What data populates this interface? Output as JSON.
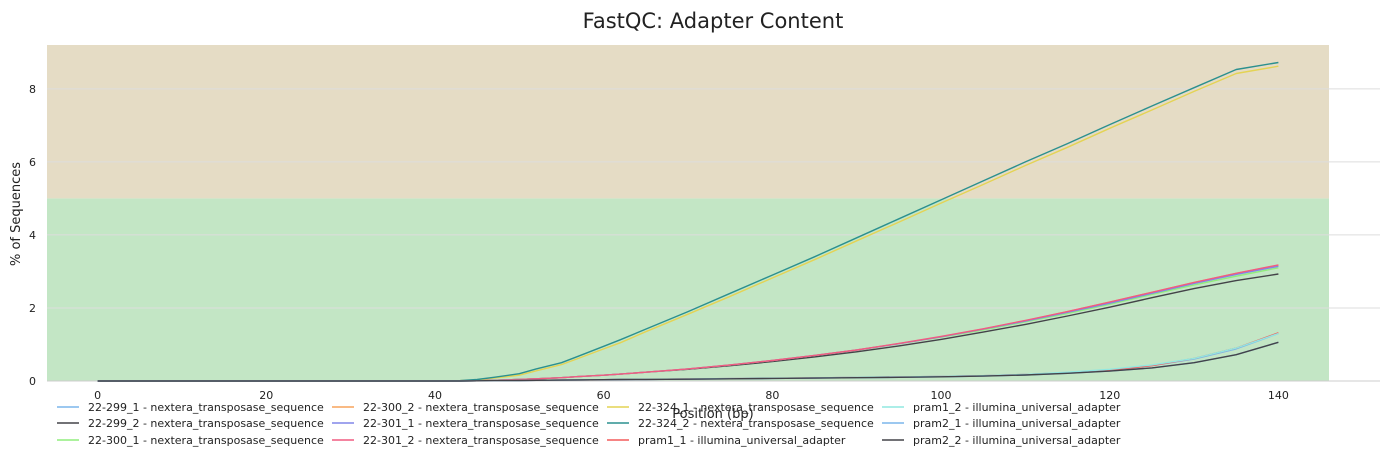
{
  "chart_data": {
    "type": "line",
    "title": "FastQC: Adapter Content",
    "xlabel": "Position (bp)",
    "ylabel": "% of Sequences",
    "xlim": [
      -6,
      146
    ],
    "ylim": [
      0,
      9.2
    ],
    "xticks": [
      0,
      20,
      40,
      60,
      80,
      100,
      120,
      140
    ],
    "yticks": [
      0,
      2,
      4,
      6,
      8
    ],
    "grid": true,
    "legend_position": "bottom",
    "bands": [
      {
        "from": 0,
        "to": 5,
        "color": "#c3e6c5"
      },
      {
        "from": 5,
        "to": 9.2,
        "color": "#e5dcc5"
      }
    ],
    "x": [
      0,
      10,
      20,
      30,
      35,
      40,
      43,
      45,
      47,
      50,
      52,
      55,
      57,
      60,
      62,
      65,
      70,
      75,
      80,
      85,
      90,
      95,
      100,
      105,
      110,
      115,
      120,
      125,
      130,
      135,
      140
    ],
    "series": [
      {
        "name": "22-299_1 - nextera_transposase_sequence",
        "color": "#7cb5ec",
        "values": [
          0,
          0,
          0,
          0,
          0,
          0,
          0,
          0.005,
          0.01,
          0.015,
          0.02,
          0.025,
          0.03,
          0.035,
          0.04,
          0.045,
          0.055,
          0.065,
          0.075,
          0.085,
          0.1,
          0.11,
          0.125,
          0.145,
          0.18,
          0.23,
          0.3,
          0.42,
          0.6,
          0.88,
          1.3
        ]
      },
      {
        "name": "22-299_2 - nextera_transposase_sequence",
        "color": "#434348",
        "values": [
          0,
          0,
          0,
          0,
          0,
          0,
          0.005,
          0.01,
          0.02,
          0.04,
          0.06,
          0.09,
          0.12,
          0.16,
          0.19,
          0.24,
          0.32,
          0.42,
          0.53,
          0.66,
          0.8,
          0.96,
          1.14,
          1.34,
          1.55,
          1.78,
          2.02,
          2.28,
          2.53,
          2.75,
          2.93
        ]
      },
      {
        "name": "22-300_1 - nextera_transposase_sequence",
        "color": "#90ed7d",
        "values": [
          0,
          0,
          0,
          0,
          0,
          0,
          0.005,
          0.01,
          0.02,
          0.04,
          0.06,
          0.09,
          0.12,
          0.16,
          0.19,
          0.24,
          0.33,
          0.44,
          0.56,
          0.7,
          0.85,
          1.02,
          1.2,
          1.4,
          1.62,
          1.85,
          2.1,
          2.37,
          2.63,
          2.87,
          3.1
        ]
      },
      {
        "name": "22-300_2 - nextera_transposase_sequence",
        "color": "#f7a35c",
        "values": [
          0,
          0,
          0,
          0,
          0,
          0,
          0.005,
          0.01,
          0.02,
          0.04,
          0.06,
          0.09,
          0.12,
          0.16,
          0.19,
          0.24,
          0.33,
          0.44,
          0.56,
          0.7,
          0.85,
          1.02,
          1.21,
          1.42,
          1.65,
          1.9,
          2.16,
          2.43,
          2.7,
          2.95,
          3.17
        ]
      },
      {
        "name": "22-301_1 - nextera_transposase_sequence",
        "color": "#8085e9",
        "values": [
          0,
          0,
          0,
          0,
          0,
          0,
          0.005,
          0.01,
          0.02,
          0.04,
          0.06,
          0.09,
          0.12,
          0.16,
          0.19,
          0.24,
          0.33,
          0.44,
          0.56,
          0.7,
          0.85,
          1.02,
          1.21,
          1.42,
          1.64,
          1.88,
          2.13,
          2.4,
          2.67,
          2.92,
          3.14
        ]
      },
      {
        "name": "22-301_2 - nextera_transposase_sequence",
        "color": "#f15c80",
        "values": [
          0,
          0,
          0,
          0,
          0,
          0,
          0.005,
          0.01,
          0.02,
          0.04,
          0.06,
          0.09,
          0.12,
          0.16,
          0.19,
          0.24,
          0.33,
          0.44,
          0.56,
          0.7,
          0.85,
          1.03,
          1.22,
          1.43,
          1.66,
          1.9,
          2.16,
          2.43,
          2.7,
          2.95,
          3.18
        ]
      },
      {
        "name": "22-324_1 - nextera_transposase_sequence",
        "color": "#e4d354",
        "values": [
          0,
          0,
          0,
          0,
          0,
          0,
          0.01,
          0.03,
          0.08,
          0.16,
          0.28,
          0.45,
          0.62,
          0.88,
          1.05,
          1.35,
          1.83,
          2.32,
          2.82,
          3.32,
          3.84,
          4.35,
          4.87,
          5.38,
          5.9,
          6.4,
          6.92,
          7.42,
          7.93,
          8.42,
          8.62
        ]
      },
      {
        "name": "22-324_2 - nextera_transposase_sequence",
        "color": "#2b908f",
        "values": [
          0,
          0,
          0,
          0,
          0,
          0,
          0.01,
          0.04,
          0.1,
          0.2,
          0.33,
          0.5,
          0.68,
          0.95,
          1.13,
          1.42,
          1.9,
          2.4,
          2.9,
          3.4,
          3.92,
          4.44,
          4.96,
          5.48,
          6.0,
          6.5,
          7.02,
          7.53,
          8.03,
          8.53,
          8.72
        ]
      },
      {
        "name": "pram1_1 - illumina_universal_adapter",
        "color": "#f45b5b",
        "values": [
          0,
          0,
          0,
          0,
          0,
          0,
          0,
          0.005,
          0.01,
          0.015,
          0.02,
          0.025,
          0.03,
          0.035,
          0.04,
          0.045,
          0.055,
          0.065,
          0.075,
          0.085,
          0.1,
          0.11,
          0.125,
          0.145,
          0.18,
          0.23,
          0.3,
          0.42,
          0.62,
          0.9,
          1.32
        ]
      },
      {
        "name": "pram1_2 - illumina_universal_adapter",
        "color": "#91e8e1",
        "values": [
          0,
          0,
          0,
          0,
          0,
          0,
          0,
          0.005,
          0.01,
          0.015,
          0.02,
          0.025,
          0.03,
          0.035,
          0.04,
          0.045,
          0.055,
          0.065,
          0.075,
          0.085,
          0.1,
          0.11,
          0.125,
          0.145,
          0.18,
          0.24,
          0.32,
          0.44,
          0.62,
          0.9,
          1.3
        ]
      },
      {
        "name": "pram2_1 - illumina_universal_adapter",
        "color": "#7cb5ec",
        "values": [
          0,
          0,
          0,
          0,
          0,
          0,
          0,
          0.005,
          0.01,
          0.015,
          0.02,
          0.025,
          0.03,
          0.035,
          0.04,
          0.045,
          0.05,
          0.06,
          0.07,
          0.08,
          0.09,
          0.1,
          0.115,
          0.135,
          0.165,
          0.21,
          0.27,
          0.36,
          0.5,
          0.72,
          1.06
        ]
      },
      {
        "name": "pram2_2 - illumina_universal_adapter",
        "color": "#434348",
        "values": [
          0,
          0,
          0,
          0,
          0,
          0,
          0,
          0.005,
          0.01,
          0.015,
          0.02,
          0.025,
          0.03,
          0.035,
          0.04,
          0.045,
          0.05,
          0.06,
          0.07,
          0.08,
          0.09,
          0.1,
          0.115,
          0.135,
          0.165,
          0.21,
          0.27,
          0.36,
          0.5,
          0.72,
          1.06
        ]
      }
    ]
  }
}
